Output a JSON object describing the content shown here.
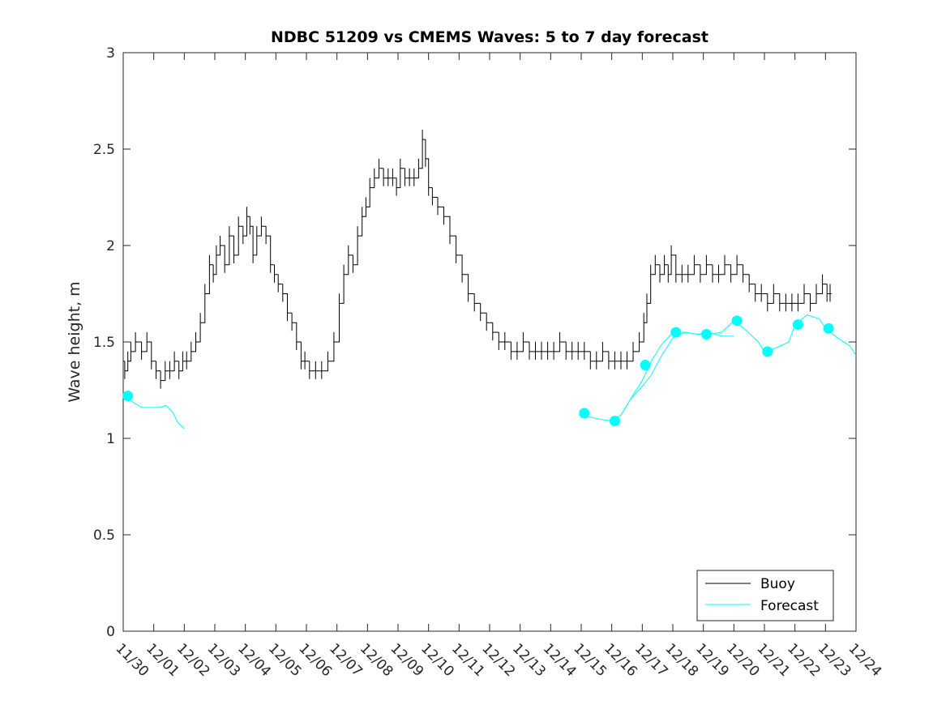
{
  "chart_data": {
    "type": "line",
    "title": "NDBC 51209 vs CMEMS Waves: 5 to 7 day forecast",
    "xlabel": "",
    "ylabel": "Wave height, m",
    "xlim": [
      0,
      24
    ],
    "ylim": [
      0,
      3
    ],
    "x_ticks": [
      {
        "x": 0,
        "label": "11/30"
      },
      {
        "x": 1,
        "label": "12/01"
      },
      {
        "x": 2,
        "label": "12/02"
      },
      {
        "x": 3,
        "label": "12/03"
      },
      {
        "x": 4,
        "label": "12/04"
      },
      {
        "x": 5,
        "label": "12/05"
      },
      {
        "x": 6,
        "label": "12/06"
      },
      {
        "x": 7,
        "label": "12/07"
      },
      {
        "x": 8,
        "label": "12/08"
      },
      {
        "x": 9,
        "label": "12/09"
      },
      {
        "x": 10,
        "label": "12/10"
      },
      {
        "x": 11,
        "label": "12/11"
      },
      {
        "x": 12,
        "label": "12/12"
      },
      {
        "x": 13,
        "label": "12/13"
      },
      {
        "x": 14,
        "label": "12/14"
      },
      {
        "x": 15,
        "label": "12/15"
      },
      {
        "x": 16,
        "label": "12/16"
      },
      {
        "x": 17,
        "label": "12/17"
      },
      {
        "x": 18,
        "label": "12/18"
      },
      {
        "x": 19,
        "label": "12/19"
      },
      {
        "x": 20,
        "label": "12/20"
      },
      {
        "x": 21,
        "label": "12/21"
      },
      {
        "x": 22,
        "label": "12/22"
      },
      {
        "x": 23,
        "label": "12/23"
      },
      {
        "x": 24,
        "label": "12/24"
      }
    ],
    "y_ticks": [
      {
        "y": 0,
        "label": "0"
      },
      {
        "y": 0.5,
        "label": "0.5"
      },
      {
        "y": 1,
        "label": "1"
      },
      {
        "y": 1.5,
        "label": "1.5"
      },
      {
        "y": 2,
        "label": "2"
      },
      {
        "y": 2.5,
        "label": "2.5"
      },
      {
        "y": 3,
        "label": "3"
      }
    ],
    "grid": false,
    "legend": {
      "position": "bottom-right",
      "entries": [
        "Buoy",
        "Forecast"
      ]
    },
    "colors": {
      "buoy": "#000000",
      "forecast": "#00FFFF"
    },
    "series": [
      {
        "name": "Buoy",
        "x": [
          0.0,
          0.1,
          0.2,
          0.3,
          0.5,
          0.7,
          0.85,
          1.0,
          1.15,
          1.3,
          1.45,
          1.6,
          1.75,
          1.9,
          2.0,
          2.15,
          2.3,
          2.45,
          2.6,
          2.75,
          2.9,
          3.0,
          3.1,
          3.25,
          3.4,
          3.55,
          3.7,
          3.85,
          4.0,
          4.1,
          4.2,
          4.3,
          4.45,
          4.6,
          4.75,
          4.9,
          5.0,
          5.15,
          5.3,
          5.45,
          5.6,
          5.75,
          5.9,
          6.0,
          6.2,
          6.4,
          6.6,
          6.8,
          7.0,
          7.15,
          7.3,
          7.45,
          7.6,
          7.75,
          7.9,
          8.0,
          8.15,
          8.3,
          8.45,
          8.6,
          8.75,
          8.9,
          9.0,
          9.15,
          9.3,
          9.45,
          9.6,
          9.75,
          9.85,
          9.95,
          10.05,
          10.2,
          10.4,
          10.6,
          10.8,
          11.0,
          11.2,
          11.4,
          11.6,
          11.8,
          12.0,
          12.2,
          12.4,
          12.6,
          12.8,
          13.0,
          13.2,
          13.4,
          13.6,
          13.8,
          14.0,
          14.2,
          14.4,
          14.6,
          14.8,
          15.0,
          15.2,
          15.4,
          15.6,
          15.8,
          16.0,
          16.2,
          16.4,
          16.6,
          16.8,
          17.0,
          17.1,
          17.2,
          17.35,
          17.5,
          17.65,
          17.8,
          17.9,
          18.0,
          18.2,
          18.4,
          18.6,
          18.8,
          19.0,
          19.2,
          19.4,
          19.6,
          19.8,
          20.0,
          20.2,
          20.4,
          20.6,
          20.8,
          21.0,
          21.2,
          21.4,
          21.6,
          21.8,
          22.0,
          22.2,
          22.4,
          22.6,
          22.8,
          23.0,
          23.1,
          23.2
        ],
        "y": [
          1.4,
          1.35,
          1.4,
          1.45,
          1.5,
          1.45,
          1.5,
          1.4,
          1.35,
          1.3,
          1.35,
          1.35,
          1.4,
          1.35,
          1.4,
          1.4,
          1.45,
          1.5,
          1.6,
          1.75,
          1.9,
          1.85,
          1.95,
          2.0,
          1.9,
          2.05,
          1.95,
          2.1,
          2.05,
          2.15,
          2.1,
          1.95,
          2.05,
          2.1,
          2.05,
          1.9,
          1.85,
          1.8,
          1.75,
          1.65,
          1.6,
          1.5,
          1.4,
          1.4,
          1.35,
          1.35,
          1.35,
          1.4,
          1.5,
          1.7,
          1.85,
          1.95,
          1.9,
          2.05,
          2.15,
          2.2,
          2.3,
          2.35,
          2.4,
          2.35,
          2.35,
          2.35,
          2.3,
          2.4,
          2.35,
          2.35,
          2.35,
          2.4,
          2.55,
          2.45,
          2.3,
          2.25,
          2.2,
          2.15,
          2.05,
          1.95,
          1.85,
          1.75,
          1.7,
          1.65,
          1.6,
          1.55,
          1.5,
          1.5,
          1.45,
          1.45,
          1.5,
          1.45,
          1.45,
          1.45,
          1.45,
          1.45,
          1.5,
          1.45,
          1.45,
          1.45,
          1.45,
          1.4,
          1.4,
          1.45,
          1.4,
          1.4,
          1.4,
          1.4,
          1.45,
          1.5,
          1.6,
          1.7,
          1.85,
          1.9,
          1.85,
          1.9,
          1.85,
          1.95,
          1.85,
          1.85,
          1.85,
          1.9,
          1.85,
          1.9,
          1.85,
          1.85,
          1.9,
          1.85,
          1.9,
          1.85,
          1.8,
          1.75,
          1.75,
          1.7,
          1.75,
          1.7,
          1.7,
          1.7,
          1.7,
          1.75,
          1.7,
          1.75,
          1.8,
          1.75,
          1.75
        ]
      },
      {
        "name": "Forecast",
        "x": [
          0.0,
          0.2,
          0.4,
          0.6,
          0.8,
          1.0,
          1.2,
          1.4,
          1.6,
          1.8,
          2.0
        ],
        "y": [
          1.22,
          1.2,
          1.18,
          1.16,
          1.16,
          1.16,
          1.16,
          1.17,
          1.14,
          1.08,
          1.05
        ]
      },
      {
        "name": "Forecast",
        "x": [
          15.0,
          15.3,
          15.6,
          16.0,
          16.3,
          16.6,
          17.0,
          17.3,
          17.6,
          18.0,
          18.4,
          18.8,
          19.2,
          19.6,
          20.0
        ],
        "y": [
          1.13,
          1.11,
          1.1,
          1.09,
          1.12,
          1.2,
          1.27,
          1.33,
          1.42,
          1.52,
          1.55,
          1.54,
          1.55,
          1.53,
          1.53
        ]
      },
      {
        "name": "Forecast",
        "x": [
          16.0,
          16.3,
          16.6,
          17.0,
          17.3,
          17.6,
          18.0,
          18.4,
          18.8,
          19.2,
          19.6,
          20.0,
          20.4,
          20.8,
          21.0,
          21.4,
          21.8,
          22.0,
          22.4,
          22.8,
          23.0,
          23.4,
          23.8,
          24.0
        ],
        "y": [
          1.09,
          1.12,
          1.2,
          1.3,
          1.4,
          1.48,
          1.55,
          1.55,
          1.54,
          1.54,
          1.55,
          1.61,
          1.56,
          1.5,
          1.45,
          1.47,
          1.5,
          1.59,
          1.64,
          1.62,
          1.57,
          1.52,
          1.48,
          1.43
        ]
      }
    ],
    "forecast_markers": {
      "x": [
        0.15,
        15.1,
        16.1,
        17.1,
        18.1,
        19.1,
        20.1,
        21.1,
        22.1,
        23.1
      ],
      "y": [
        1.22,
        1.13,
        1.09,
        1.38,
        1.55,
        1.54,
        1.61,
        1.45,
        1.59,
        1.57
      ]
    }
  }
}
